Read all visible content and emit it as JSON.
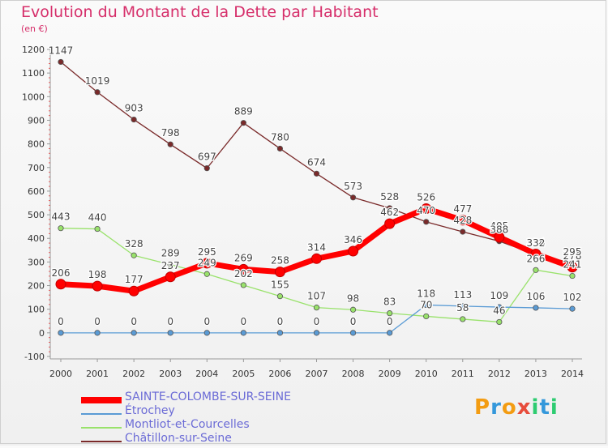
{
  "title": "Evolution du Montant de la Dette par Habitant",
  "unit_label": "(en €)",
  "brand": {
    "text": "Proxiti",
    "letters": [
      {
        "ch": "P",
        "color": "#f39c12"
      },
      {
        "ch": "r",
        "color": "#3498db"
      },
      {
        "ch": "o",
        "color": "#f39c12"
      },
      {
        "ch": "x",
        "color": "#e74c3c"
      },
      {
        "ch": "i",
        "color": "#2ecc71"
      },
      {
        "ch": "t",
        "color": "#3498db"
      },
      {
        "ch": "i",
        "color": "#2ecc71"
      }
    ]
  },
  "chart_data": {
    "type": "line",
    "title": "Evolution du Montant de la Dette par Habitant",
    "x": [
      "2000",
      "2001",
      "2002",
      "2003",
      "2004",
      "2005",
      "2006",
      "2007",
      "2008",
      "2009",
      "2010",
      "2011",
      "2012",
      "2013",
      "2014"
    ],
    "ylim": [
      -100,
      1200
    ],
    "yticks": [
      -100,
      0,
      100,
      200,
      300,
      400,
      500,
      600,
      700,
      800,
      900,
      1000,
      1100,
      1200
    ],
    "grid": false,
    "legend_position": "bottom-left",
    "series": [
      {
        "name": "SAINTE-COLOMBE-SUR-SEINE",
        "color": "#ff0000",
        "values": [
          206,
          198,
          177,
          237,
          295,
          269,
          258,
          314,
          346,
          462,
          526,
          477,
          405,
          334,
          278
        ]
      },
      {
        "name": "Étrochey",
        "color": "#5a9bd5",
        "values": [
          0,
          0,
          0,
          0,
          0,
          0,
          0,
          0,
          0,
          0,
          118,
          113,
          109,
          106,
          102
        ]
      },
      {
        "name": "Montliot-et-Courcelles",
        "color": "#99e26b",
        "values": [
          443,
          440,
          328,
          289,
          249,
          202,
          155,
          107,
          98,
          83,
          70,
          58,
          46,
          266,
          241
        ]
      },
      {
        "name": "Châtillon-sur-Seine",
        "color": "#7a2a2a",
        "values": [
          1147,
          1019,
          903,
          798,
          697,
          889,
          780,
          674,
          573,
          528,
          470,
          428,
          388,
          332,
          295
        ]
      }
    ]
  }
}
